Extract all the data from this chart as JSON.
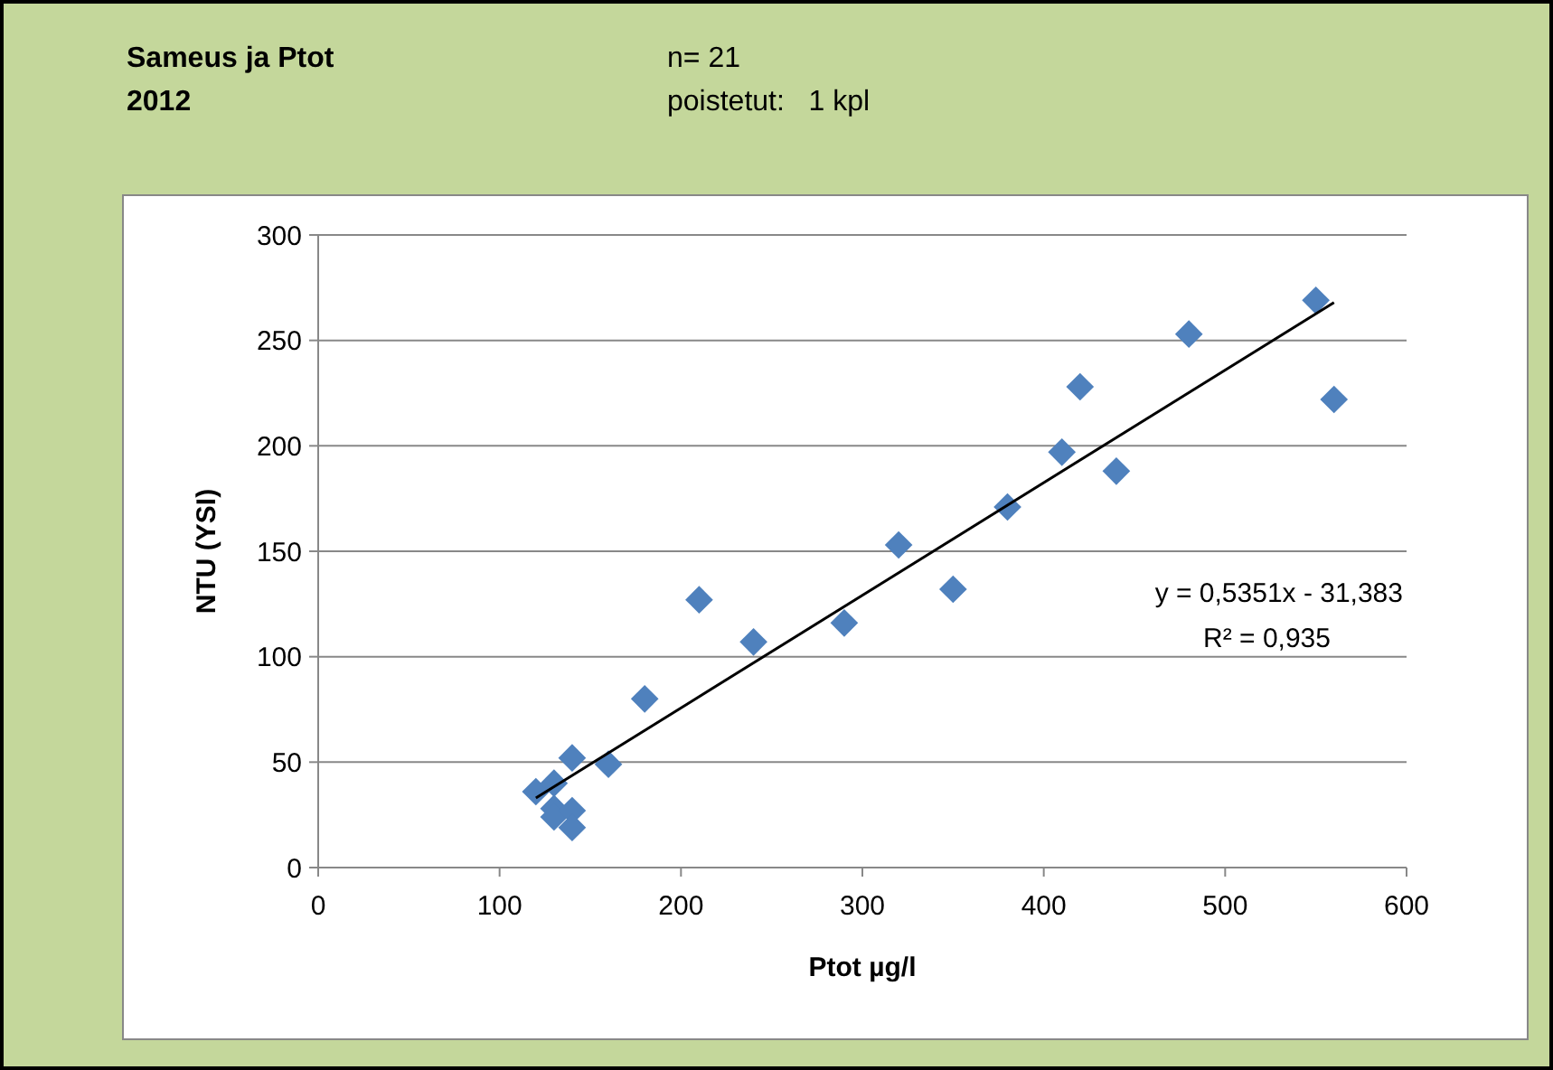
{
  "chart_data": {
    "type": "scatter",
    "title": "Sameus ja Ptot",
    "subtitle": "2012",
    "xlabel": "Ptot µg/l",
    "ylabel": "NTU (YSI)",
    "annotations": [
      "n= 21",
      "poistetut:   1 kpl",
      "y = 0,5351x - 31,383",
      "R² = 0,935"
    ],
    "xlim": [
      0,
      600
    ],
    "xticks": [
      0,
      100,
      200,
      300,
      400,
      500,
      600
    ],
    "ylim": [
      0,
      300
    ],
    "yticks": [
      0,
      50,
      100,
      150,
      200,
      250,
      300
    ],
    "grid": "y",
    "series": [
      {
        "marker": "diamond",
        "color": "#4f81bd",
        "x": [
          120,
          130,
          140,
          160,
          180,
          210,
          240,
          290,
          320,
          350,
          380,
          410,
          420,
          440,
          480,
          550,
          560,
          130,
          130,
          140,
          140
        ],
        "values": [
          36,
          40,
          52,
          49,
          80,
          127,
          107,
          116,
          153,
          132,
          171,
          197,
          228,
          188,
          253,
          269,
          222,
          28,
          24,
          27,
          19
        ]
      },
      {
        "type": "line",
        "color": "#000000",
        "x": [
          120,
          560
        ],
        "values": [
          33,
          268
        ]
      }
    ]
  }
}
